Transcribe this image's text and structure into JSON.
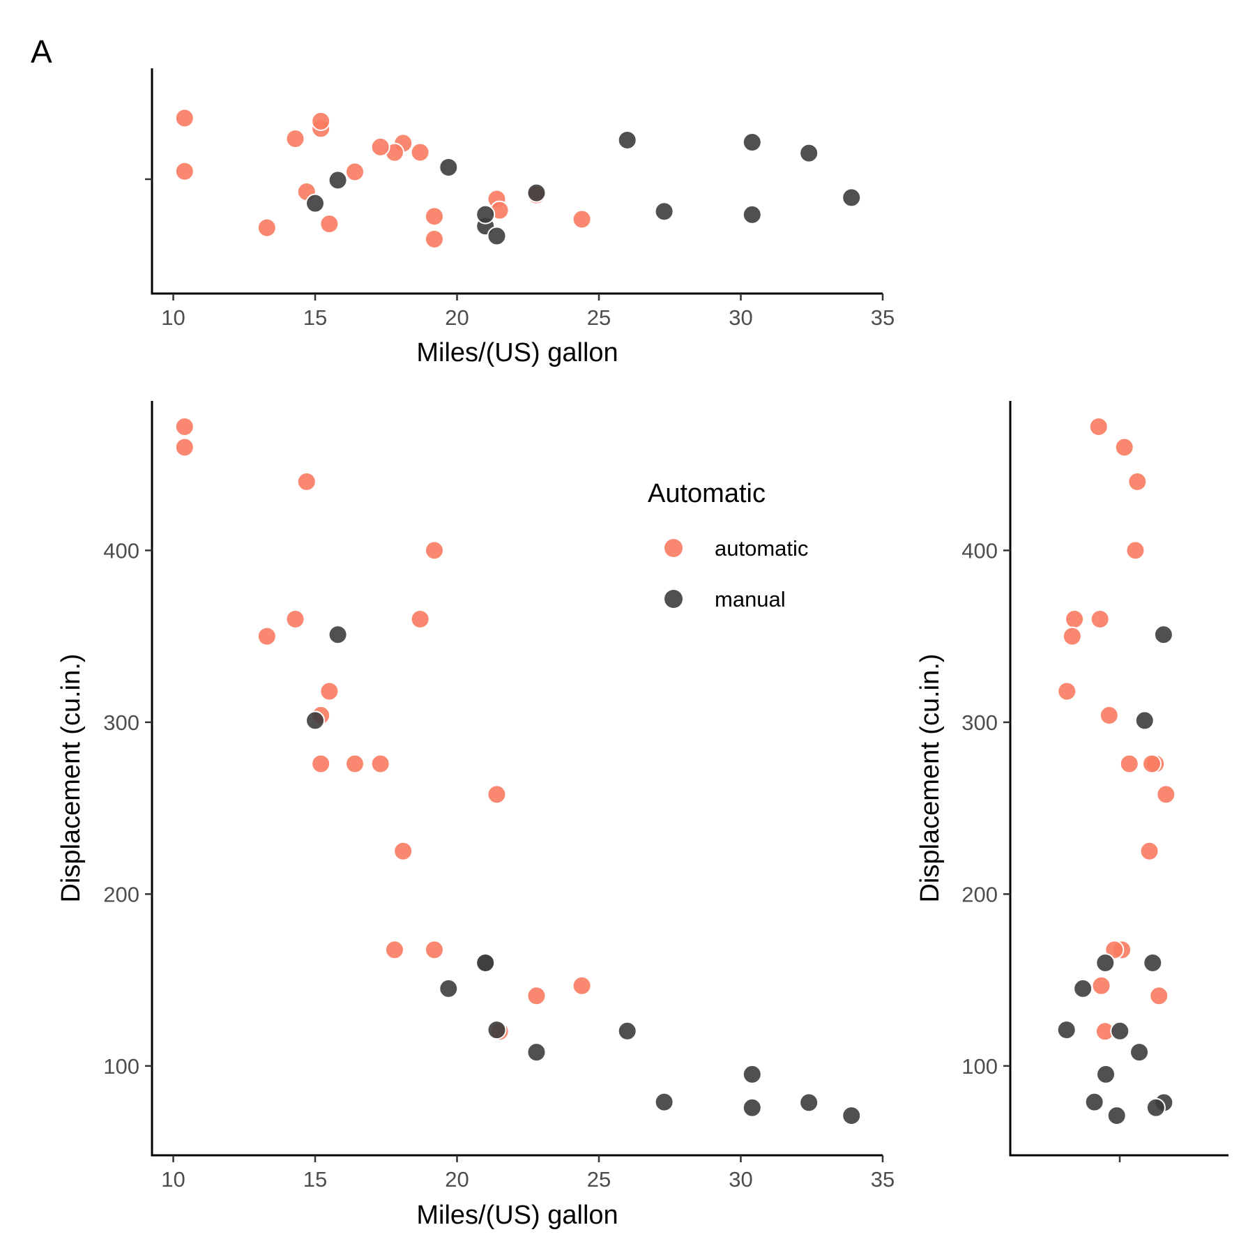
{
  "panel_tag": "A",
  "legend": {
    "title": "Automatic",
    "placement": "top-right of main panel",
    "items": [
      {
        "label": "automatic",
        "color": "#fa7b61"
      },
      {
        "label": "manual",
        "color": "#3d3d3d"
      }
    ]
  },
  "chart_data": [
    {
      "type": "scatter",
      "panel": "top strip",
      "xlabel": "Miles/(US) gallon",
      "ylabel": "",
      "xlim": [
        9.25,
        35
      ],
      "xticks": [
        10,
        15,
        20,
        25,
        30,
        35
      ],
      "grid": false,
      "jitter_axis": "y"
    },
    {
      "type": "scatter",
      "panel": "main",
      "xlabel": "Miles/(US) gallon",
      "ylabel": "Displacement (cu.in.)",
      "xlim": [
        9.25,
        35
      ],
      "ylim": [
        48,
        487
      ],
      "xticks": [
        10,
        15,
        20,
        25,
        30,
        35
      ],
      "yticks": [
        100,
        200,
        300,
        400
      ],
      "grid": false,
      "series": [
        {
          "name": "automatic",
          "color": "#fa7b61",
          "points": [
            [
              21.4,
              258
            ],
            [
              18.7,
              360
            ],
            [
              18.1,
              225
            ],
            [
              14.3,
              360
            ],
            [
              24.4,
              146.7
            ],
            [
              22.8,
              140.8
            ],
            [
              19.2,
              167.6
            ],
            [
              17.8,
              167.6
            ],
            [
              16.4,
              275.8
            ],
            [
              17.3,
              275.8
            ],
            [
              15.2,
              275.8
            ],
            [
              10.4,
              472
            ],
            [
              10.4,
              460
            ],
            [
              14.7,
              440
            ],
            [
              21.5,
              120.1
            ],
            [
              15.5,
              318
            ],
            [
              15.2,
              304
            ],
            [
              13.3,
              350
            ],
            [
              19.2,
              400
            ]
          ]
        },
        {
          "name": "manual",
          "color": "#3d3d3d",
          "points": [
            [
              21.0,
              160
            ],
            [
              21.0,
              160
            ],
            [
              22.8,
              108
            ],
            [
              32.4,
              78.7
            ],
            [
              30.4,
              75.7
            ],
            [
              33.9,
              71.1
            ],
            [
              27.3,
              79
            ],
            [
              26.0,
              120.3
            ],
            [
              30.4,
              95.1
            ],
            [
              15.8,
              351
            ],
            [
              19.7,
              145
            ],
            [
              15.0,
              301
            ],
            [
              21.4,
              121
            ]
          ]
        }
      ]
    },
    {
      "type": "scatter",
      "panel": "right strip",
      "xlabel": "",
      "ylabel": "Displacement (cu.in.)",
      "ylim": [
        48,
        487
      ],
      "yticks": [
        100,
        200,
        300,
        400
      ],
      "grid": false,
      "jitter_axis": "x"
    }
  ]
}
